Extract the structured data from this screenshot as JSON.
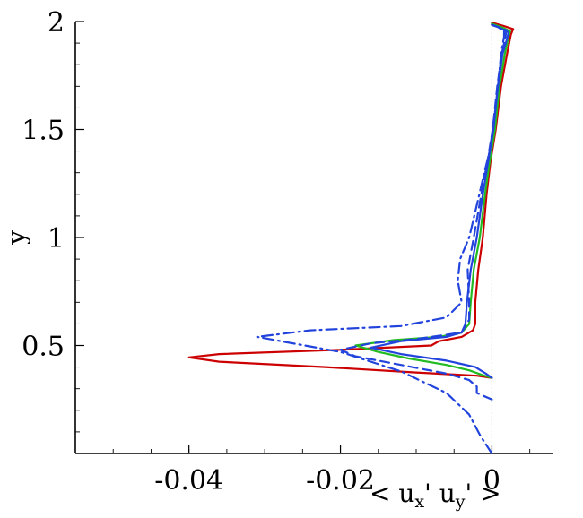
{
  "chart_data": {
    "type": "line",
    "title": "",
    "xlabel": "< u",
    "xlabel_sub1": "x",
    "xlabel_sep": "' u",
    "xlabel_sub2": "y",
    "xlabel_end": "' >",
    "ylabel": "y",
    "xlim": [
      -0.055,
      0.008
    ],
    "ylim": [
      0.0,
      2.0
    ],
    "x_ticks": [
      -0.04,
      -0.02,
      0
    ],
    "x_tick_labels": [
      "-0.04",
      "-0.02",
      "0"
    ],
    "y_ticks": [
      0.5,
      1.0,
      1.5,
      2.0
    ],
    "y_tick_labels": [
      "0.5",
      "1",
      "1.5",
      "2"
    ],
    "grid": false,
    "legend": "none",
    "series": [
      {
        "color": "#cc0000",
        "dash": "solid",
        "points": [
          [
            0.0,
            0.35
          ],
          [
            -0.002,
            0.36
          ],
          [
            -0.01,
            0.375
          ],
          [
            -0.022,
            0.4
          ],
          [
            -0.036,
            0.425
          ],
          [
            -0.04,
            0.445
          ],
          [
            -0.036,
            0.46
          ],
          [
            -0.02,
            0.48
          ],
          [
            -0.008,
            0.5
          ],
          [
            -0.007,
            0.52
          ],
          [
            -0.004,
            0.54
          ],
          [
            -0.0025,
            0.57
          ],
          [
            -0.0022,
            0.6
          ],
          [
            -0.0022,
            0.7
          ],
          [
            -0.0018,
            0.85
          ],
          [
            -0.0012,
            1.0
          ],
          [
            -0.0007,
            1.2
          ],
          [
            -0.0002,
            1.35
          ],
          [
            0.0005,
            1.5
          ],
          [
            0.0012,
            1.7
          ],
          [
            0.002,
            1.85
          ],
          [
            0.0025,
            1.94
          ],
          [
            0.0028,
            1.965
          ],
          [
            0.0015,
            1.98
          ],
          [
            0.0,
            1.995
          ]
        ]
      },
      {
        "color": "#22bb22",
        "dash": "solid",
        "points": [
          [
            0.0,
            0.35
          ],
          [
            -0.001,
            0.36
          ],
          [
            -0.003,
            0.385
          ],
          [
            -0.006,
            0.41
          ],
          [
            -0.011,
            0.44
          ],
          [
            -0.015,
            0.47
          ],
          [
            -0.018,
            0.5
          ],
          [
            -0.013,
            0.525
          ],
          [
            -0.007,
            0.54
          ],
          [
            -0.004,
            0.56
          ],
          [
            -0.003,
            0.6
          ],
          [
            -0.0028,
            0.7
          ],
          [
            -0.0024,
            0.85
          ],
          [
            -0.0016,
            1.0
          ],
          [
            -0.0009,
            1.2
          ],
          [
            -0.0003,
            1.35
          ],
          [
            0.0004,
            1.5
          ],
          [
            0.001,
            1.7
          ],
          [
            0.0017,
            1.85
          ],
          [
            0.0022,
            1.93
          ],
          [
            0.0024,
            1.955
          ],
          [
            0.0012,
            1.975
          ],
          [
            0.0,
            1.99
          ]
        ]
      },
      {
        "color": "#2244dd",
        "dash": "solid",
        "points": [
          [
            0.0,
            0.35
          ],
          [
            -0.0008,
            0.37
          ],
          [
            -0.0022,
            0.4
          ],
          [
            -0.006,
            0.43
          ],
          [
            -0.012,
            0.46
          ],
          [
            -0.016,
            0.49
          ],
          [
            -0.012,
            0.52
          ],
          [
            -0.006,
            0.54
          ],
          [
            -0.004,
            0.56
          ],
          [
            -0.0035,
            0.6
          ],
          [
            -0.0033,
            0.7
          ],
          [
            -0.0028,
            0.85
          ],
          [
            -0.002,
            1.0
          ],
          [
            -0.0012,
            1.2
          ],
          [
            -0.0005,
            1.35
          ],
          [
            0.0002,
            1.5
          ],
          [
            0.0008,
            1.7
          ],
          [
            0.0014,
            1.85
          ],
          [
            0.002,
            1.92
          ],
          [
            0.0022,
            1.95
          ],
          [
            0.0011,
            1.97
          ],
          [
            0.0,
            1.985
          ]
        ]
      },
      {
        "color": "#2244dd",
        "dash": "dashed",
        "points": [
          [
            0.0,
            0.25
          ],
          [
            -0.002,
            0.28
          ],
          [
            -0.002,
            0.31
          ],
          [
            -0.003,
            0.34
          ],
          [
            -0.006,
            0.37
          ],
          [
            -0.012,
            0.41
          ],
          [
            -0.018,
            0.45
          ],
          [
            -0.02,
            0.48
          ],
          [
            -0.016,
            0.51
          ],
          [
            -0.01,
            0.53
          ],
          [
            -0.004,
            0.56
          ],
          [
            -0.003,
            0.62
          ],
          [
            -0.003,
            0.7
          ],
          [
            -0.0032,
            0.85
          ],
          [
            -0.0024,
            1.0
          ],
          [
            -0.0014,
            1.2
          ],
          [
            -0.0006,
            1.35
          ],
          [
            0.0001,
            1.5
          ],
          [
            0.0007,
            1.7
          ],
          [
            0.0013,
            1.85
          ],
          [
            0.0018,
            1.93
          ],
          [
            0.0019,
            1.96
          ],
          [
            0.0,
            1.985
          ]
        ]
      },
      {
        "color": "#2244dd",
        "dash": "dashdot",
        "points": [
          [
            0.0,
            0.0
          ],
          [
            -0.0015,
            0.08
          ],
          [
            -0.003,
            0.18
          ],
          [
            -0.006,
            0.28
          ],
          [
            -0.012,
            0.38
          ],
          [
            -0.02,
            0.47
          ],
          [
            -0.031,
            0.54
          ],
          [
            -0.024,
            0.57
          ],
          [
            -0.012,
            0.59
          ],
          [
            -0.006,
            0.63
          ],
          [
            -0.004,
            0.7
          ],
          [
            -0.0045,
            0.8
          ],
          [
            -0.0042,
            0.9
          ],
          [
            -0.003,
            1.0
          ],
          [
            -0.002,
            1.15
          ],
          [
            -0.001,
            1.3
          ],
          [
            -0.0003,
            1.4
          ],
          [
            0.0003,
            1.55
          ],
          [
            0.0008,
            1.7
          ],
          [
            0.0012,
            1.85
          ],
          [
            0.0016,
            1.93
          ],
          [
            0.0016,
            1.96
          ],
          [
            0.0,
            1.985
          ]
        ]
      }
    ]
  }
}
